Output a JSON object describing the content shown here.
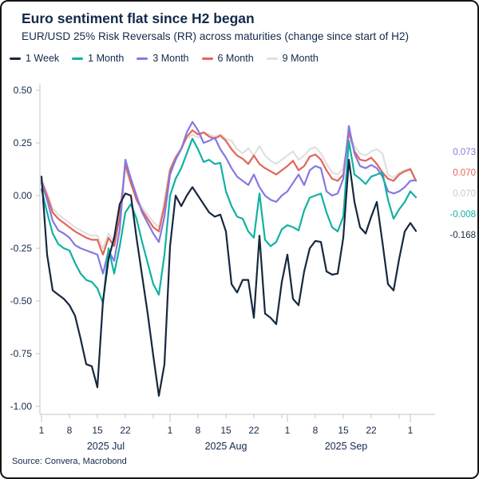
{
  "header": {
    "title": "Euro sentiment flat since H2 began",
    "subtitle": "EUR/USD 25% Risk Reversals (RR) across maturities (change since start of H2)"
  },
  "legend": [
    {
      "label": "1 Week",
      "color": "#16283f"
    },
    {
      "label": "1 Month",
      "color": "#10b2a2"
    },
    {
      "label": "3 Month",
      "color": "#8678e0"
    },
    {
      "label": "6 Month",
      "color": "#e2645a"
    },
    {
      "label": "9 Month",
      "color": "#e0e0e0"
    }
  ],
  "source": "Source: Convera, Macrobond",
  "chart_data": {
    "type": "line",
    "title": "Euro sentiment flat since H2 began",
    "subtitle": "EUR/USD 25% Risk Reversals (RR) across maturities (change since start of H2)",
    "xlabel": "",
    "ylabel": "",
    "grid": false,
    "legend_position": "top",
    "y_axis": {
      "min": -1.0,
      "max": 0.5,
      "ticks": [
        {
          "v": 0.5,
          "label": "0.50"
        },
        {
          "v": 0.25,
          "label": "0.25"
        },
        {
          "v": 0.0,
          "label": "0.00"
        },
        {
          "v": -0.25,
          "label": "-0.25"
        },
        {
          "v": -0.5,
          "label": "-0.50"
        },
        {
          "v": -0.75,
          "label": "-0.75"
        },
        {
          "v": -1.0,
          "label": "-1.00"
        }
      ]
    },
    "x_axis": {
      "unit": "business days Jul 1 2025 - Oct 2 2025",
      "day_ticks": [
        {
          "i": 0,
          "label": "1",
          "major": true
        },
        {
          "i": 5,
          "label": "8"
        },
        {
          "i": 10,
          "label": "15"
        },
        {
          "i": 15,
          "label": "22"
        },
        {
          "i": 20,
          "label": ""
        },
        {
          "i": 23,
          "label": "1",
          "major": true
        },
        {
          "i": 28,
          "label": "8"
        },
        {
          "i": 33,
          "label": "15"
        },
        {
          "i": 38,
          "label": "22"
        },
        {
          "i": 43,
          "label": ""
        },
        {
          "i": 44,
          "label": "1",
          "major": true
        },
        {
          "i": 49,
          "label": "8"
        },
        {
          "i": 54,
          "label": "15"
        },
        {
          "i": 59,
          "label": "22"
        },
        {
          "i": 64,
          "label": ""
        },
        {
          "i": 66,
          "label": "1",
          "major": true
        }
      ],
      "month_labels": [
        {
          "label": "2025 Jul",
          "i": 11.5
        },
        {
          "label": "2025 Aug",
          "i": 33
        },
        {
          "label": "2025 Sep",
          "i": 54.5
        }
      ]
    },
    "dates": [
      "Jul 1",
      "Jul 2",
      "Jul 3",
      "Jul 4",
      "Jul 7",
      "Jul 8",
      "Jul 9",
      "Jul 10",
      "Jul 11",
      "Jul 14",
      "Jul 15",
      "Jul 16",
      "Jul 17",
      "Jul 18",
      "Jul 21",
      "Jul 22",
      "Jul 23",
      "Jul 24",
      "Jul 25",
      "Jul 28",
      "Jul 29",
      "Jul 30",
      "Jul 31",
      "Aug 1",
      "Aug 4",
      "Aug 5",
      "Aug 6",
      "Aug 7",
      "Aug 8",
      "Aug 11",
      "Aug 12",
      "Aug 13",
      "Aug 14",
      "Aug 15",
      "Aug 18",
      "Aug 19",
      "Aug 20",
      "Aug 21",
      "Aug 22",
      "Aug 25",
      "Aug 26",
      "Aug 27",
      "Aug 28",
      "Aug 29",
      "Sep 1",
      "Sep 2",
      "Sep 3",
      "Sep 4",
      "Sep 5",
      "Sep 8",
      "Sep 9",
      "Sep 10",
      "Sep 11",
      "Sep 12",
      "Sep 15",
      "Sep 16",
      "Sep 17",
      "Sep 18",
      "Sep 19",
      "Sep 22",
      "Sep 23",
      "Sep 24",
      "Sep 25",
      "Sep 26",
      "Sep 29",
      "Sep 30",
      "Oct 1",
      "Oct 2"
    ],
    "series": [
      {
        "name": "1 Week",
        "color": "#16283f",
        "end_value": -0.168,
        "values": [
          0.09,
          -0.28,
          -0.45,
          -0.47,
          -0.49,
          -0.52,
          -0.57,
          -0.68,
          -0.8,
          -0.81,
          -0.91,
          -0.5,
          -0.3,
          -0.2,
          -0.04,
          0.01,
          0.0,
          -0.2,
          -0.38,
          -0.56,
          -0.76,
          -0.95,
          -0.8,
          -0.24,
          0.0,
          -0.05,
          0.0,
          0.04,
          0.0,
          -0.04,
          -0.08,
          -0.1,
          -0.09,
          -0.17,
          -0.42,
          -0.46,
          -0.4,
          -0.4,
          -0.58,
          -0.19,
          -0.56,
          -0.58,
          -0.61,
          -0.41,
          -0.28,
          -0.49,
          -0.52,
          -0.36,
          -0.25,
          -0.215,
          -0.22,
          -0.36,
          -0.375,
          -0.37,
          -0.2,
          0.17,
          -0.03,
          -0.15,
          -0.18,
          -0.1,
          -0.03,
          -0.22,
          -0.42,
          -0.45,
          -0.3,
          -0.17,
          -0.13,
          -0.168
        ]
      },
      {
        "name": "1 Month",
        "color": "#10b2a2",
        "end_value": -0.008,
        "values": [
          0.03,
          -0.08,
          -0.18,
          -0.23,
          -0.25,
          -0.26,
          -0.32,
          -0.37,
          -0.4,
          -0.41,
          -0.44,
          -0.51,
          -0.25,
          -0.37,
          -0.24,
          -0.08,
          -0.04,
          -0.11,
          -0.22,
          -0.32,
          -0.42,
          -0.47,
          -0.28,
          0.0,
          0.08,
          0.13,
          0.2,
          0.27,
          0.22,
          0.16,
          0.17,
          0.15,
          0.155,
          0.02,
          -0.05,
          -0.1,
          -0.11,
          -0.17,
          -0.2,
          0.01,
          -0.21,
          -0.24,
          -0.22,
          -0.16,
          -0.14,
          -0.15,
          -0.165,
          -0.07,
          -0.01,
          0.0,
          0.01,
          -0.08,
          -0.15,
          -0.17,
          -0.1,
          0.26,
          0.1,
          0.08,
          0.055,
          0.09,
          0.1,
          0.11,
          -0.02,
          -0.11,
          -0.065,
          -0.03,
          0.02,
          -0.008
        ]
      },
      {
        "name": "3 Month",
        "color": "#8678e0",
        "end_value": 0.073,
        "values": [
          0.06,
          -0.02,
          -0.12,
          -0.165,
          -0.18,
          -0.2,
          -0.235,
          -0.25,
          -0.26,
          -0.27,
          -0.28,
          -0.37,
          -0.26,
          -0.31,
          -0.16,
          0.17,
          0.08,
          0.0,
          -0.08,
          -0.13,
          -0.18,
          -0.22,
          -0.1,
          0.1,
          0.17,
          0.22,
          0.3,
          0.35,
          0.31,
          0.25,
          0.26,
          0.275,
          0.22,
          0.18,
          0.13,
          0.09,
          0.07,
          0.05,
          0.1,
          0.04,
          0.0,
          -0.02,
          -0.03,
          0.0,
          0.02,
          0.06,
          0.1,
          0.05,
          0.12,
          0.14,
          0.13,
          0.02,
          0.0,
          0.01,
          0.08,
          0.33,
          0.2,
          0.14,
          0.13,
          0.145,
          0.13,
          0.09,
          0.02,
          0.01,
          0.02,
          0.04,
          0.07,
          0.073
        ]
      },
      {
        "name": "6 Month",
        "color": "#e2645a",
        "end_value": 0.07,
        "values": [
          0.07,
          0.0,
          -0.08,
          -0.11,
          -0.13,
          -0.15,
          -0.17,
          -0.185,
          -0.2,
          -0.21,
          -0.21,
          -0.28,
          -0.2,
          -0.24,
          -0.1,
          0.15,
          0.06,
          -0.02,
          -0.07,
          -0.11,
          -0.15,
          -0.17,
          -0.05,
          0.12,
          0.18,
          0.22,
          0.28,
          0.31,
          0.29,
          0.3,
          0.28,
          0.27,
          0.285,
          0.26,
          0.22,
          0.19,
          0.175,
          0.15,
          0.19,
          0.15,
          0.13,
          0.115,
          0.1,
          0.12,
          0.14,
          0.165,
          0.12,
          0.14,
          0.185,
          0.195,
          0.17,
          0.12,
          0.08,
          0.07,
          0.1,
          0.3,
          0.21,
          0.17,
          0.165,
          0.18,
          0.15,
          0.11,
          0.08,
          0.07,
          0.1,
          0.115,
          0.125,
          0.07
        ]
      },
      {
        "name": "9 Month",
        "color": "#e0e0e0",
        "end_value": 0.07,
        "values": [
          0.08,
          0.01,
          -0.06,
          -0.09,
          -0.11,
          -0.13,
          -0.15,
          -0.165,
          -0.18,
          -0.19,
          -0.19,
          -0.25,
          -0.18,
          -0.215,
          -0.08,
          0.13,
          0.05,
          -0.01,
          -0.055,
          -0.09,
          -0.125,
          -0.15,
          -0.02,
          0.13,
          0.185,
          0.23,
          0.27,
          0.29,
          0.275,
          0.3,
          0.29,
          0.28,
          0.29,
          0.27,
          0.26,
          0.22,
          0.2,
          0.225,
          0.19,
          0.235,
          0.19,
          0.165,
          0.15,
          0.17,
          0.19,
          0.21,
          0.17,
          0.19,
          0.22,
          0.23,
          0.2,
          0.15,
          0.11,
          0.1,
          0.13,
          0.29,
          0.235,
          0.2,
          0.19,
          0.21,
          0.22,
          0.2,
          0.1,
          0.085,
          0.11,
          0.12,
          0.13,
          0.07
        ]
      }
    ],
    "end_labels": [
      {
        "text": "0.073",
        "series": "3 Month",
        "color": "#8678e0",
        "y": 192
      },
      {
        "text": "0.070",
        "series": "6 Month",
        "color": "#e2645a",
        "y": 218
      },
      {
        "text": "0.070",
        "series": "9 Month",
        "color": "#c9c9c9",
        "y": 244
      },
      {
        "text": "-0.008",
        "series": "1 Month",
        "color": "#10b2a2",
        "y": 270
      },
      {
        "text": "-0.168",
        "series": "1 Week",
        "color": "#16283f",
        "y": 296
      }
    ]
  }
}
